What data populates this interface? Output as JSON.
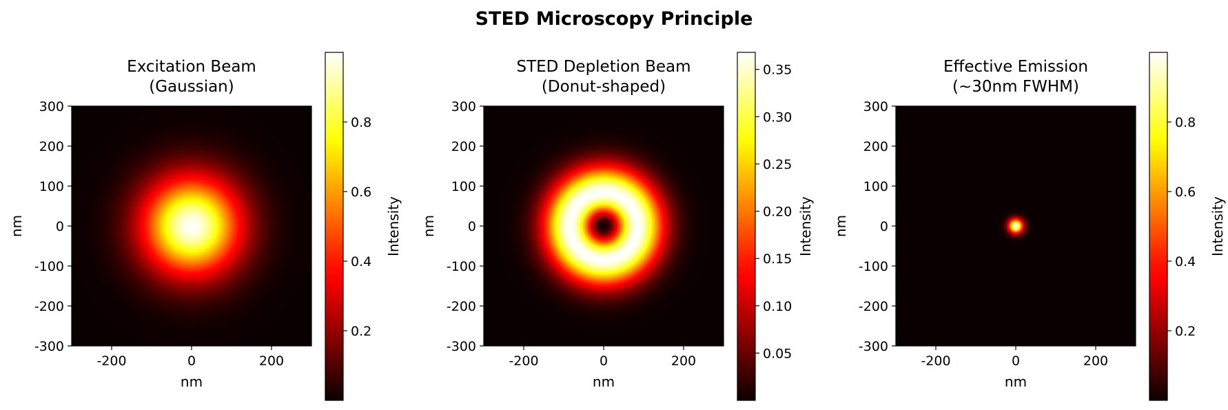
{
  "figure": {
    "title": "STED Microscopy Principle"
  },
  "colormap": "hot",
  "chart_data": [
    {
      "type": "heatmap",
      "title_lines": [
        "Excitation Beam",
        "(Gaussian)"
      ],
      "xlabel": "nm",
      "ylabel": "nm",
      "xlim": [
        -300,
        300
      ],
      "ylim": [
        -300,
        300
      ],
      "xticks": [
        -200,
        0,
        200
      ],
      "yticks": [
        300,
        200,
        100,
        0,
        -100,
        -200,
        -300
      ],
      "profile": "gaussian",
      "peak_intensity": 1.0,
      "colorbar": {
        "label": "Intensity",
        "min": 0.0,
        "max": 1.0,
        "ticks": [
          0.2,
          0.4,
          0.6,
          0.8
        ]
      }
    },
    {
      "type": "heatmap",
      "title_lines": [
        "STED Depletion Beam",
        "(Donut-shaped)"
      ],
      "xlabel": "nm",
      "ylabel": "nm",
      "xlim": [
        -300,
        300
      ],
      "ylim": [
        -300,
        300
      ],
      "xticks": [
        -200,
        0,
        200
      ],
      "yticks": [
        300,
        200,
        100,
        0,
        -100,
        -200,
        -300
      ],
      "profile": "donut",
      "peak_intensity": 0.368,
      "colorbar": {
        "label": "Intensity",
        "min": 0.0,
        "max": 0.368,
        "ticks": [
          0.05,
          0.1,
          0.15,
          0.2,
          0.25,
          0.3,
          0.35
        ]
      }
    },
    {
      "type": "heatmap",
      "title_lines": [
        "Effective Emission",
        "(~30nm FWHM)"
      ],
      "xlabel": "nm",
      "ylabel": "nm",
      "xlim": [
        -300,
        300
      ],
      "ylim": [
        -300,
        300
      ],
      "xticks": [
        -200,
        0,
        200
      ],
      "yticks": [
        300,
        200,
        100,
        0,
        -100,
        -200,
        -300
      ],
      "profile": "gaussian",
      "fwhm_nm": 30,
      "peak_intensity": 1.0,
      "colorbar": {
        "label": "Intensity",
        "min": 0.0,
        "max": 1.0,
        "ticks": [
          0.2,
          0.4,
          0.6,
          0.8
        ]
      }
    }
  ]
}
